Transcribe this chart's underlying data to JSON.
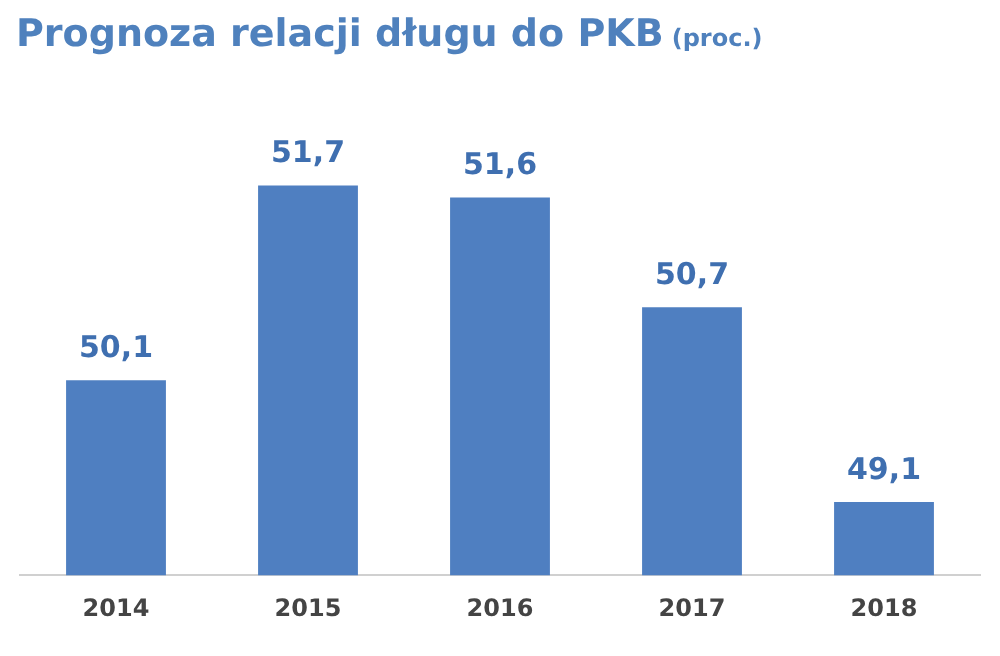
{
  "chart_data": {
    "type": "bar",
    "title": "Prognoza relacji długu do PKB",
    "subtitle": "(proc.)",
    "categories": [
      "2014",
      "2015",
      "2016",
      "2017",
      "2018"
    ],
    "values": [
      50.1,
      51.7,
      51.6,
      50.7,
      49.1
    ],
    "value_labels": [
      "50,1",
      "51,7",
      "51,6",
      "50,7",
      "49,1"
    ],
    "color": "#4f7fc1",
    "tick_labels": "x",
    "grid": false,
    "legend": false
  }
}
